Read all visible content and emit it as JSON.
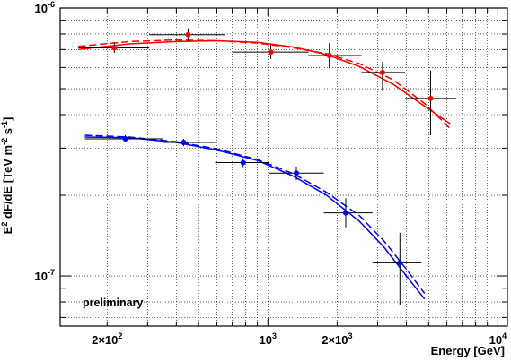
{
  "chart_data": {
    "type": "scatter",
    "title": "",
    "xlabel": "Energy [GeV]",
    "ylabel": {
      "base": "E",
      "exp": "2",
      "mid": " dF/dE [TeV m",
      "exp2": "-2",
      "mid2": " s",
      "exp3": "-1",
      "tail": "]"
    },
    "xscale": "log",
    "yscale": "log",
    "xlim": [
      125,
      11000
    ],
    "ylim": [
      6.5e-08,
      1e-06
    ],
    "grid": true,
    "legend": "none",
    "annotation": {
      "text": "preliminary",
      "color": "#0000ff"
    },
    "x_ticks": [
      {
        "value": 200,
        "base": "2×10",
        "exp": "2"
      },
      {
        "value": 1000,
        "base": "10",
        "exp": "3"
      },
      {
        "value": 2000,
        "base": "2×10",
        "exp": "3"
      },
      {
        "value": 10000,
        "base": "10",
        "exp": "4"
      }
    ],
    "y_ticks": [
      {
        "value": 1e-06,
        "base": "10",
        "exp": "-6"
      },
      {
        "value": 1e-07,
        "base": "10",
        "exp": "-7"
      }
    ],
    "series": [
      {
        "color": "#ff0000",
        "points": [
          {
            "x": 215,
            "y": 7.1e-07,
            "xerr": [
              150,
              305
            ],
            "yerr": [
              6.8e-07,
              7.45e-07
            ]
          },
          {
            "x": 450,
            "y": 7.95e-07,
            "xerr": [
              305,
              650
            ],
            "yerr": [
              7.55e-07,
              8.4e-07
            ]
          },
          {
            "x": 1030,
            "y": 6.85e-07,
            "xerr": [
              700,
              1500
            ],
            "yerr": [
              6.45e-07,
              7.3e-07
            ]
          },
          {
            "x": 1850,
            "y": 6.65e-07,
            "xerr": [
              1500,
              2550
            ],
            "yerr": [
              5.95e-07,
              7.4e-07
            ]
          },
          {
            "x": 3150,
            "y": 5.75e-07,
            "xerr": [
              2550,
              3950
            ],
            "yerr": [
              4.9e-07,
              6.3e-07
            ]
          },
          {
            "x": 5100,
            "y": 4.6e-07,
            "xerr": [
              3950,
              6600
            ],
            "yerr": [
              3.35e-07,
              5.85e-07
            ]
          }
        ],
        "fits": [
          {
            "style": "solid",
            "x": [
              150,
              250,
              400,
              600,
              900,
              1300,
              1800,
              2500,
              3500,
              4800,
              6200
            ],
            "y": [
              7e-07,
              7.35e-07,
              7.5e-07,
              7.55e-07,
              7.45e-07,
              7.15e-07,
              6.7e-07,
              6.05e-07,
              5.2e-07,
              4.3e-07,
              3.7e-07
            ]
          },
          {
            "style": "dashed",
            "x": [
              150,
              250,
              400,
              600,
              900,
              1300,
              1800,
              2500,
              3500,
              4800,
              6200
            ],
            "y": [
              7.2e-07,
              7.5e-07,
              7.6e-07,
              7.55e-07,
              7.4e-07,
              7.1e-07,
              6.75e-07,
              6.2e-07,
              5.4e-07,
              4.4e-07,
              3.55e-07
            ]
          }
        ]
      },
      {
        "color": "#0000ff",
        "points": [
          {
            "x": 240,
            "y": 3.25e-07,
            "xerr": [
              160,
              350
            ],
            "yerr": [
              3.15e-07,
              3.35e-07
            ]
          },
          {
            "x": 430,
            "y": 3.15e-07,
            "xerr": [
              350,
              590
            ],
            "yerr": [
              3.05e-07,
              3.25e-07
            ]
          },
          {
            "x": 780,
            "y": 2.65e-07,
            "xerr": [
              590,
              1010
            ],
            "yerr": [
              2.55e-07,
              2.75e-07
            ]
          },
          {
            "x": 1330,
            "y": 2.42e-07,
            "xerr": [
              1010,
              1750
            ],
            "yerr": [
              2.28e-07,
              2.56e-07
            ]
          },
          {
            "x": 2180,
            "y": 1.72e-07,
            "xerr": [
              1750,
              2850
            ],
            "yerr": [
              1.52e-07,
              1.95e-07
            ]
          },
          {
            "x": 3750,
            "y": 1.12e-07,
            "xerr": [
              2850,
              4650
            ],
            "yerr": [
              7.8e-08,
              1.45e-07
            ]
          }
        ],
        "fits": [
          {
            "style": "solid",
            "x": [
              160,
              250,
              400,
              600,
              900,
              1300,
              1800,
              2500,
              3200,
              4000,
              4800
            ],
            "y": [
              3.3e-07,
              3.28e-07,
              3.15e-07,
              2.95e-07,
              2.7e-07,
              2.35e-07,
              2e-07,
              1.6e-07,
              1.28e-07,
              1e-07,
              8.2e-08
            ]
          },
          {
            "style": "dashed",
            "x": [
              160,
              250,
              400,
              600,
              900,
              1300,
              1800,
              2500,
              3200,
              4000,
              4800
            ],
            "y": [
              3.35e-07,
              3.3e-07,
              3.17e-07,
              2.98e-07,
              2.72e-07,
              2.4e-07,
              2.05e-07,
              1.68e-07,
              1.35e-07,
              1.06e-07,
              8.6e-08
            ]
          }
        ]
      }
    ]
  }
}
